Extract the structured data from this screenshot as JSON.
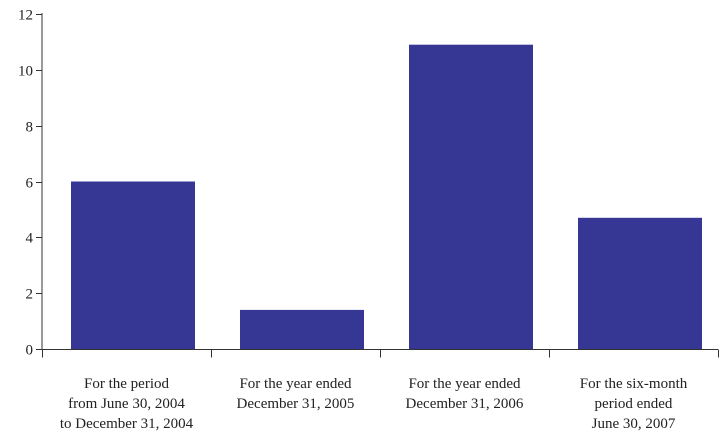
{
  "chart_data": {
    "type": "bar",
    "title": "",
    "xlabel": "",
    "ylabel": "",
    "categories": [
      [
        "For the period",
        "from June 30, 2004",
        "to December 31, 2004"
      ],
      [
        "For the year ended",
        "December 31, 2005"
      ],
      [
        "For the year ended",
        "December 31, 2006"
      ],
      [
        "For the six-month",
        "period ended",
        "June 30, 2007"
      ]
    ],
    "values": [
      6.0,
      1.4,
      10.9,
      4.7
    ],
    "ylim": [
      0,
      12
    ],
    "yticks": [
      0,
      2,
      4,
      6,
      8,
      10,
      12
    ],
    "grid": false,
    "legend": "none",
    "colors": {
      "bar": "#363795",
      "axis": "#333333",
      "text": "#222222"
    }
  }
}
